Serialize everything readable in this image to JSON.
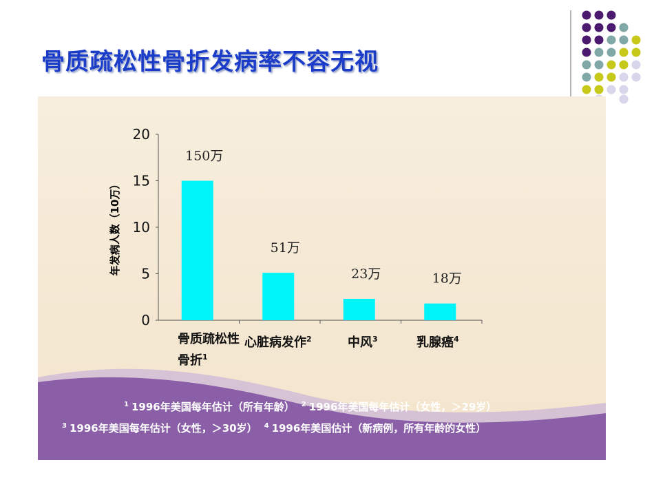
{
  "chart_data": {
    "type": "bar",
    "title": "骨质疏松性骨折发病率不容无视",
    "y_label": "年发病人数（10万）",
    "categories": [
      "骨质疏松性骨折",
      "心脏病发作",
      "中风",
      "乳腺癌"
    ],
    "category_refs": [
      "1",
      "2",
      "3",
      "4"
    ],
    "values": [
      15,
      5.1,
      2.3,
      1.8
    ],
    "value_labels": [
      "150万",
      "51万",
      "23万",
      "18万"
    ],
    "color": "#00f5fa",
    "ylim": [
      0,
      20
    ],
    "yticks": [
      0,
      5,
      10,
      15,
      20
    ],
    "footnotes": [
      {
        "ref": "1",
        "text": "1996年美国每年估计（所有年龄）"
      },
      {
        "ref": "2",
        "text": "1996年美国每年估计（女性，＞29岁）"
      },
      {
        "ref": "3",
        "text": "1996年美国每年估计（女性，＞30岁）"
      },
      {
        "ref": "4",
        "text": "1996年美国估计（新病例，所有年龄的女性）"
      }
    ]
  }
}
